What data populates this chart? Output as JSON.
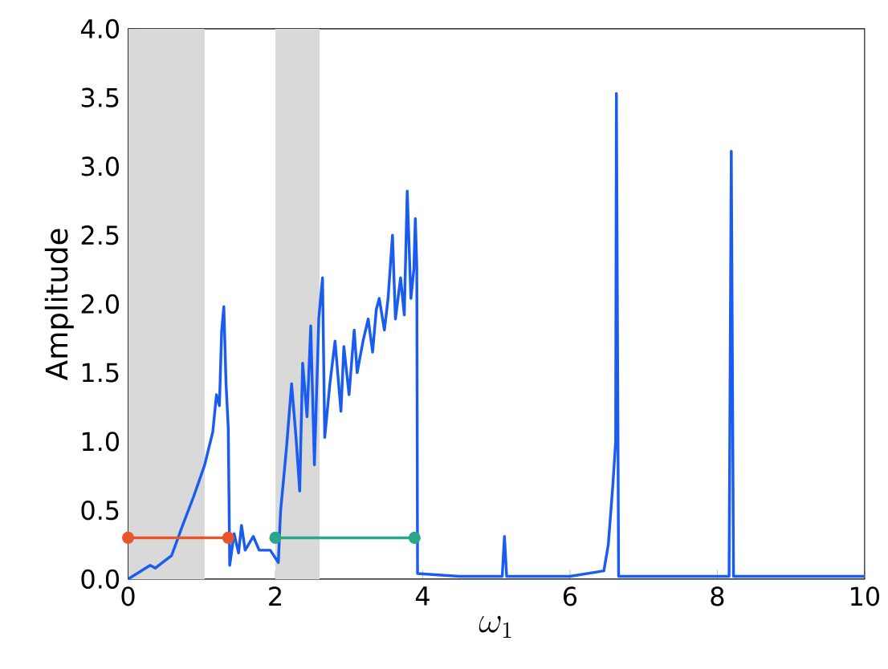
{
  "chart_data": {
    "type": "line",
    "xlabel": "\\omega_1",
    "ylabel": "Amplitude",
    "xlim": [
      0,
      10
    ],
    "ylim": [
      0,
      4
    ],
    "xticks": [
      0,
      2,
      4,
      6,
      8,
      10
    ],
    "yticks": [
      {
        "value": 0,
        "label": "0.0"
      },
      {
        "value": 0.5,
        "label": "0.5"
      },
      {
        "value": 1,
        "label": "1.0"
      },
      {
        "value": 1.5,
        "label": "1.5"
      },
      {
        "value": 2,
        "label": "2.0"
      },
      {
        "value": 2.5,
        "label": "2.5"
      },
      {
        "value": 3,
        "label": "3.0"
      },
      {
        "value": 3.5,
        "label": "3.5"
      },
      {
        "value": 4,
        "label": "4.0"
      }
    ],
    "grid": false,
    "bands": [
      {
        "axis": "x",
        "from": 0,
        "to": 1.04,
        "color": "#d9d9d9"
      },
      {
        "axis": "x",
        "from": 2.0,
        "to": 2.6,
        "color": "#d9d9d9"
      }
    ],
    "series": [
      {
        "color": "#1a5cf0",
        "marker": "none",
        "x": [
          0,
          0.3,
          0.37,
          0.59,
          0.74,
          0.89,
          1.04,
          1.15,
          1.2,
          1.24,
          1.27,
          1.3,
          1.33,
          1.36,
          1.38,
          1.44,
          1.5,
          1.54,
          1.59,
          1.7,
          1.78,
          1.93,
          2.04,
          2.07,
          2.15,
          2.22,
          2.28,
          2.33,
          2.37,
          2.43,
          2.48,
          2.53,
          2.59,
          2.64,
          2.67,
          2.74,
          2.81,
          2.89,
          2.93,
          3.0,
          3.07,
          3.11,
          3.19,
          3.26,
          3.32,
          3.37,
          3.41,
          3.48,
          3.53,
          3.59,
          3.63,
          3.7,
          3.75,
          3.79,
          3.84,
          3.88,
          3.9,
          3.92,
          3.93,
          4.5,
          5.08,
          5.11,
          5.14,
          6.0,
          6.46,
          6.52,
          6.58,
          6.62,
          6.63,
          6.66,
          8.16,
          8.19,
          8.22,
          10
        ],
        "values": [
          0,
          0.1,
          0.08,
          0.17,
          0.39,
          0.6,
          0.83,
          1.07,
          1.34,
          1.26,
          1.8,
          1.98,
          1.42,
          1.1,
          0.1,
          0.33,
          0.19,
          0.39,
          0.21,
          0.31,
          0.21,
          0.21,
          0.12,
          0.49,
          0.95,
          1.42,
          1.03,
          0.64,
          1.57,
          1.18,
          1.84,
          0.83,
          1.9,
          2.19,
          1.03,
          1.42,
          1.73,
          1.22,
          1.69,
          1.34,
          1.81,
          1.5,
          1.73,
          1.89,
          1.65,
          1.96,
          2.04,
          1.81,
          2.04,
          2.5,
          1.89,
          2.19,
          1.92,
          2.82,
          2.04,
          2.25,
          2.62,
          2.27,
          0.04,
          0.02,
          0.02,
          0.31,
          0.02,
          0.02,
          0.06,
          0.25,
          0.67,
          1.0,
          3.53,
          0.02,
          0.02,
          3.11,
          0.02,
          0.02
        ]
      },
      {
        "color": "#e8552a",
        "marker": "circle",
        "x": [
          0,
          1.36
        ],
        "values": [
          0.3,
          0.3
        ]
      },
      {
        "color": "#2ca58d",
        "marker": "circle",
        "x": [
          2.0,
          3.89
        ],
        "values": [
          0.3,
          0.3
        ]
      }
    ]
  }
}
